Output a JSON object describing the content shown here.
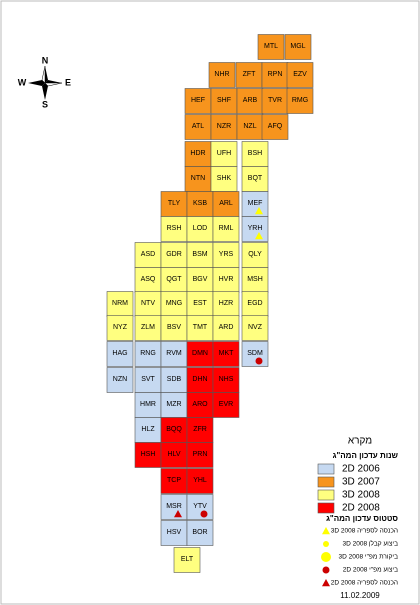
{
  "map": {
    "compass": {
      "north": "N",
      "south": "S",
      "west": "W",
      "east": "E"
    },
    "tiles": [
      {
        "label": "MTL",
        "year": 1
      },
      {
        "label": "MGL",
        "year": 1
      },
      {
        "label": "NHR",
        "year": 1
      },
      {
        "label": "ZFT",
        "year": 1
      },
      {
        "label": "RPN",
        "year": 1
      },
      {
        "label": "EZV",
        "year": 1
      },
      {
        "label": "HEF",
        "year": 1
      },
      {
        "label": "SHF",
        "year": 1
      },
      {
        "label": "ARB",
        "year": 1
      },
      {
        "label": "TVR",
        "year": 1
      },
      {
        "label": "RMG",
        "year": 1
      },
      {
        "label": "ATL",
        "year": 1
      },
      {
        "label": "NZR",
        "year": 1
      },
      {
        "label": "NZL",
        "year": 1
      },
      {
        "label": "AFQ",
        "year": 1
      },
      {
        "label": "HDR",
        "year": 1
      },
      {
        "label": "UFH",
        "year": 2
      },
      {
        "label": "BSH",
        "year": 2
      },
      {
        "label": "NTN",
        "year": 1
      },
      {
        "label": "SHK",
        "year": 2
      },
      {
        "label": "BQT",
        "year": 2
      },
      {
        "label": "TLY",
        "year": 1
      },
      {
        "label": "KSB",
        "year": 1
      },
      {
        "label": "ARL",
        "year": 1
      },
      {
        "label": "MEF",
        "year": 0,
        "status": 0
      },
      {
        "label": "RSH",
        "year": 2
      },
      {
        "label": "LOD",
        "year": 2
      },
      {
        "label": "RML",
        "year": 2
      },
      {
        "label": "YRH",
        "year": 0,
        "status": 0
      },
      {
        "label": "ASD",
        "year": 2
      },
      {
        "label": "GDR",
        "year": 2
      },
      {
        "label": "BSM",
        "year": 2
      },
      {
        "label": "YRS",
        "year": 2
      },
      {
        "label": "QLY",
        "year": 2
      },
      {
        "label": "ASQ",
        "year": 2
      },
      {
        "label": "QGT",
        "year": 2
      },
      {
        "label": "BGV",
        "year": 2
      },
      {
        "label": "HVR",
        "year": 2
      },
      {
        "label": "MSH",
        "year": 2
      },
      {
        "label": "NRM",
        "year": 2
      },
      {
        "label": "NTV",
        "year": 2
      },
      {
        "label": "MNG",
        "year": 2
      },
      {
        "label": "EST",
        "year": 2
      },
      {
        "label": "HZR",
        "year": 2
      },
      {
        "label": "EGD",
        "year": 2
      },
      {
        "label": "NYZ",
        "year": 2
      },
      {
        "label": "ZLM",
        "year": 2
      },
      {
        "label": "BSV",
        "year": 2
      },
      {
        "label": "TMT",
        "year": 2
      },
      {
        "label": "ARD",
        "year": 2
      },
      {
        "label": "NVZ",
        "year": 2
      },
      {
        "label": "HAG",
        "year": 0
      },
      {
        "label": "RNG",
        "year": 0
      },
      {
        "label": "RVM",
        "year": 0
      },
      {
        "label": "DMN",
        "year": 3
      },
      {
        "label": "MKT",
        "year": 3
      },
      {
        "label": "SDM",
        "year": 0,
        "status": 3
      },
      {
        "label": "NZN",
        "year": 0
      },
      {
        "label": "SVT",
        "year": 0
      },
      {
        "label": "SDB",
        "year": 0
      },
      {
        "label": "DHN",
        "year": 3
      },
      {
        "label": "NHS",
        "year": 3
      },
      {
        "label": "HMR",
        "year": 0
      },
      {
        "label": "MZR",
        "year": 0
      },
      {
        "label": "ARO",
        "year": 3
      },
      {
        "label": "EVR",
        "year": 3
      },
      {
        "label": "HLZ",
        "year": 0
      },
      {
        "label": "BQQ",
        "year": 3
      },
      {
        "label": "ZFR",
        "year": 3
      },
      {
        "label": "HSH",
        "year": 3
      },
      {
        "label": "HLV",
        "year": 3
      },
      {
        "label": "PRN",
        "year": 3
      },
      {
        "label": "TCP",
        "year": 3
      },
      {
        "label": "YHL",
        "year": 3
      },
      {
        "label": "MSR",
        "year": 0,
        "status": 4
      },
      {
        "label": "YTV",
        "year": 0,
        "status": 3
      },
      {
        "label": "HSV",
        "year": 0
      },
      {
        "label": "BOR",
        "year": 0
      },
      {
        "label": "ELT",
        "year": 2
      }
    ],
    "legend": {
      "title": "מקרא",
      "years_title": "שנות עדכון המה\"ג",
      "years": [
        {
          "label": "2D 2006",
          "color": "#c6d9f1"
        },
        {
          "label": "3D 2007",
          "color": "#f7941d"
        },
        {
          "label": "3D 2008",
          "color": "#ffff80"
        },
        {
          "label": "2D 2008",
          "color": "#ff0000"
        }
      ],
      "status_title": "סטטוס עדכון המה\"ג",
      "status": [
        {
          "label": "הכנסה לספריה 3D 2008",
          "color": "#ffff00",
          "shape": "triangle",
          "size": 4
        },
        {
          "label": "ביצוע קבלן 3D 2008",
          "color": "#ffff00",
          "shape": "circle",
          "size": 3
        },
        {
          "label": "ביקורת מפ\"י 3D 2008",
          "color": "#ffff00",
          "shape": "circle",
          "size": 5
        },
        {
          "label": "ביצוע מפ\"י 2D 2008",
          "color": "#cc0000",
          "shape": "circle",
          "size": 3.5
        },
        {
          "label": "הכנסה לספריה 2D 2008",
          "color": "#cc0000",
          "shape": "triangle",
          "size": 4
        }
      ]
    },
    "date": "11.02.2009"
  }
}
